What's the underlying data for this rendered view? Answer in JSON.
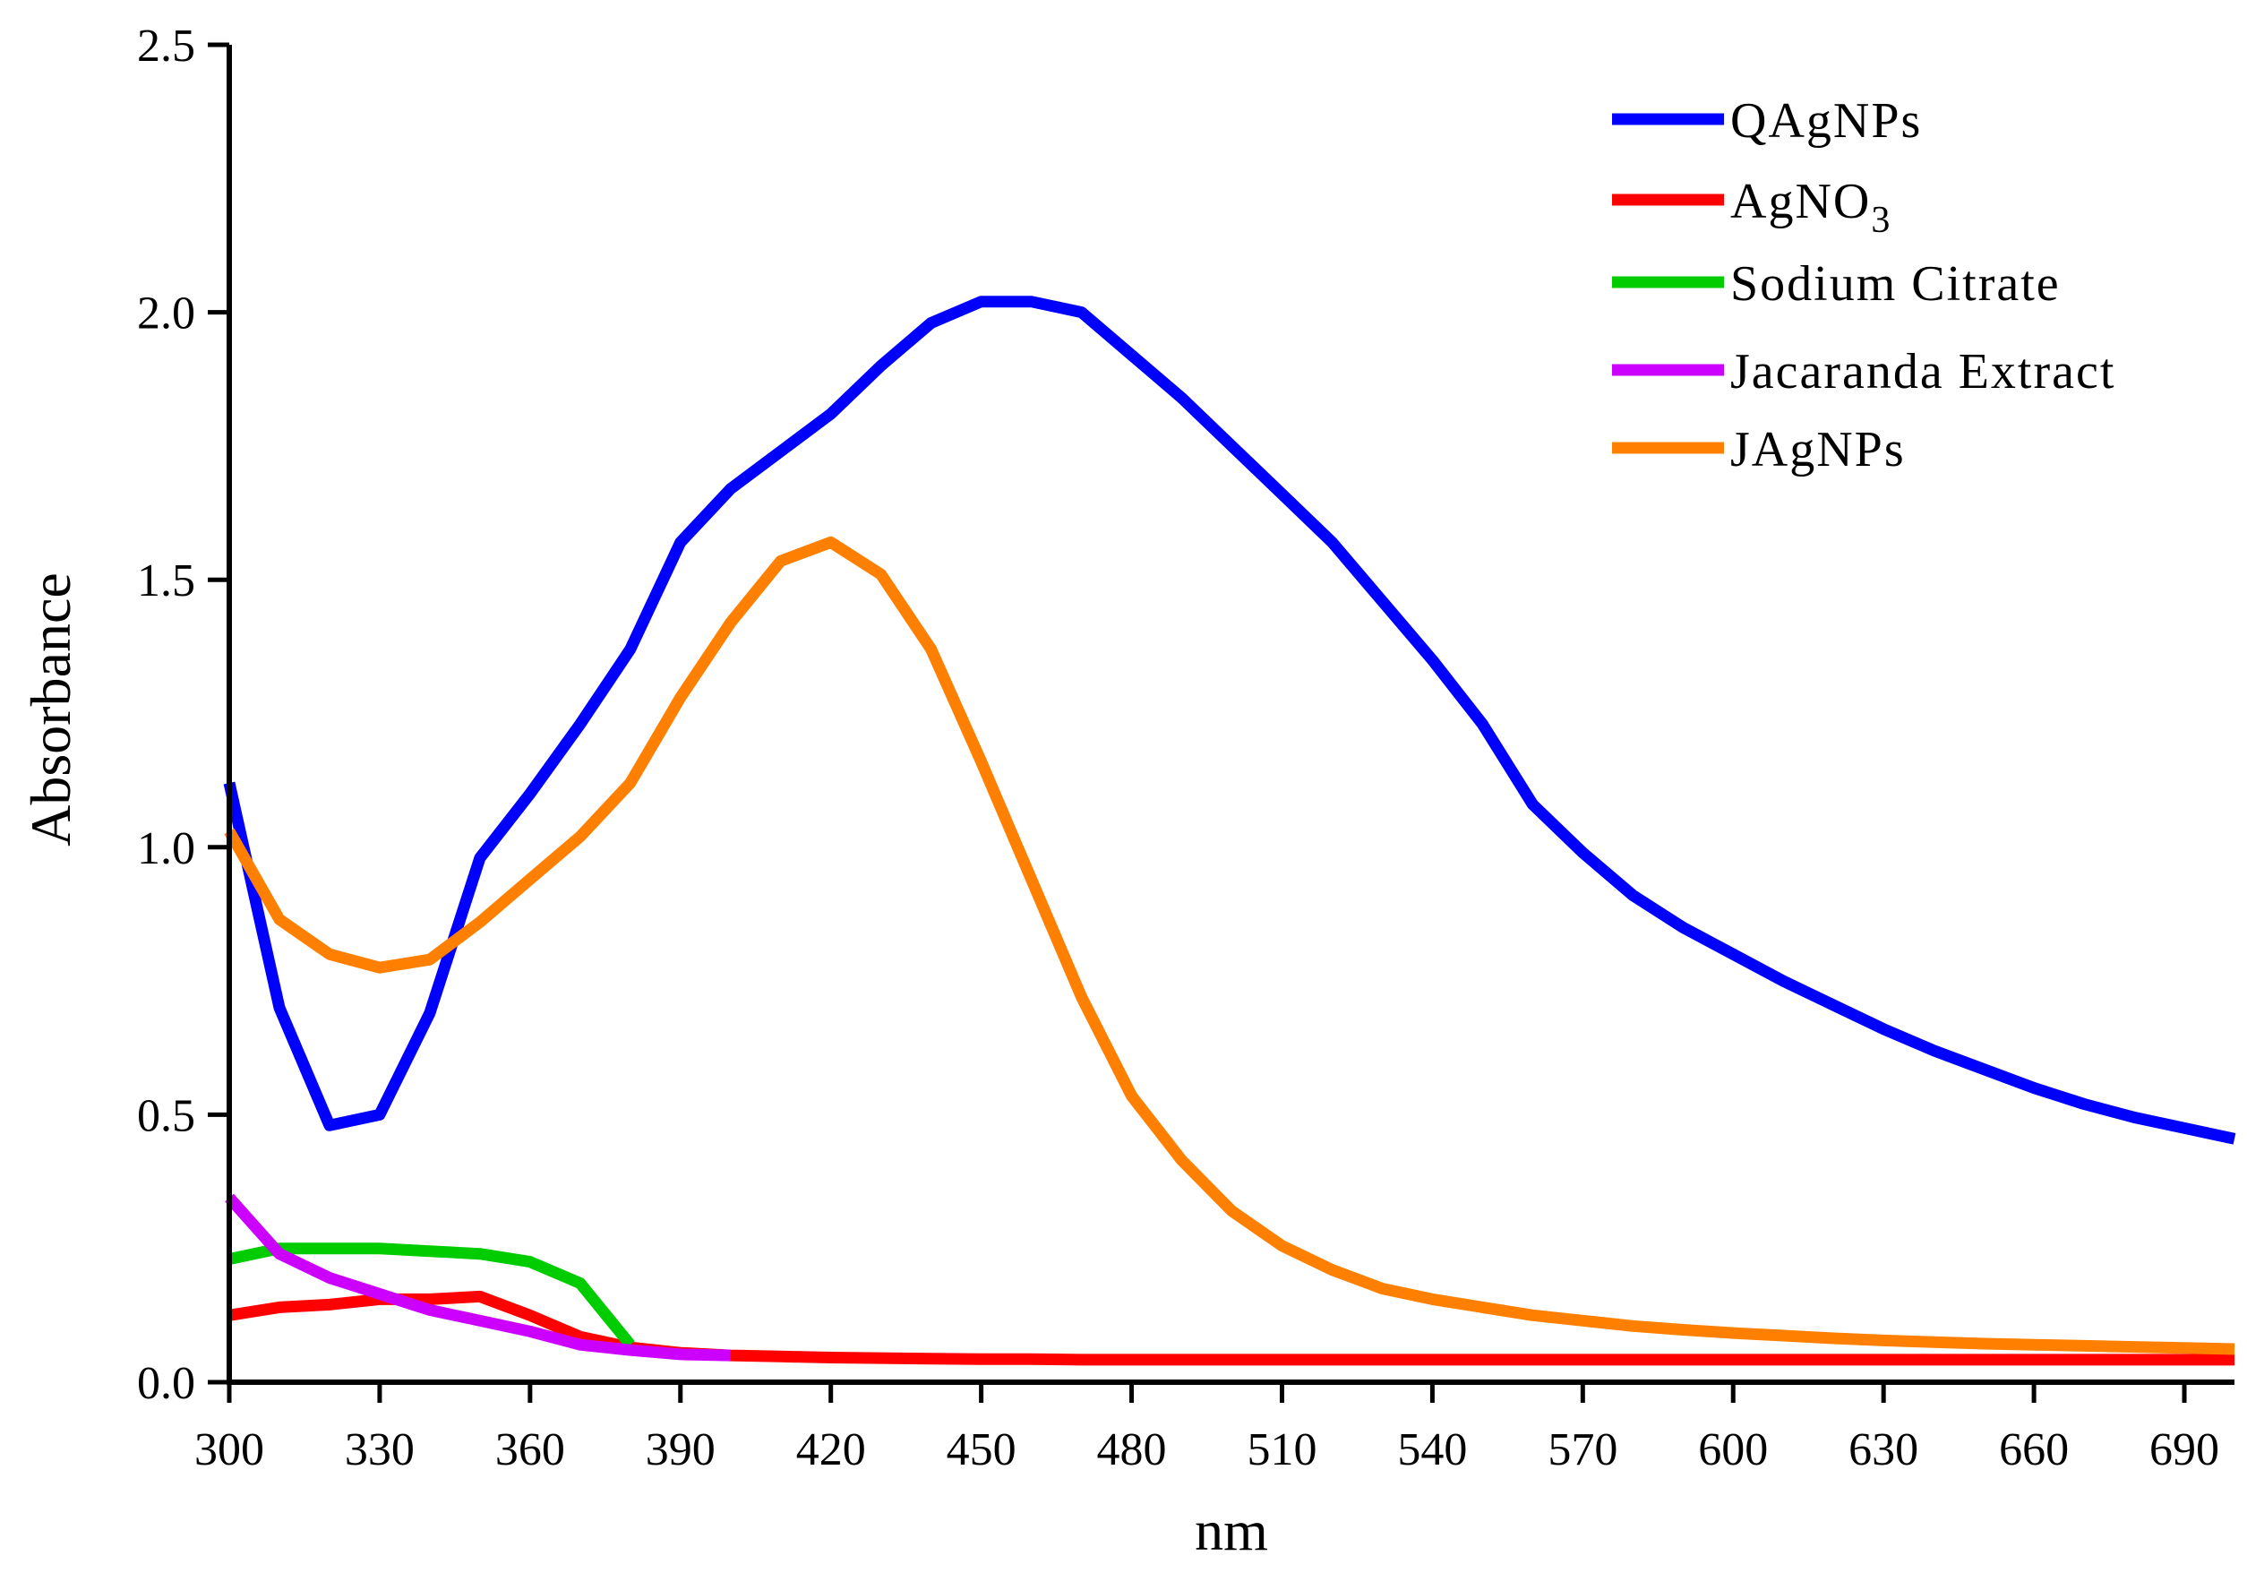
{
  "chart_data": {
    "type": "line",
    "title": "",
    "xlabel": "nm",
    "ylabel": "Absorbance",
    "xlim": [
      300,
      700
    ],
    "ylim": [
      0,
      2.5
    ],
    "x_ticks": [
      "300",
      "330",
      "360",
      "390",
      "420",
      "450",
      "480",
      "510",
      "540",
      "570",
      "600",
      "630",
      "660",
      "690"
    ],
    "y_ticks": [
      "0.0",
      "0.5",
      "1.0",
      "1.5",
      "2.0",
      "2.5"
    ],
    "grid": false,
    "legend_position": "top-right",
    "series": [
      {
        "name": "QAgNPs",
        "color": "#0000ff",
        "x": [
          300,
          310,
          320,
          330,
          340,
          350,
          360,
          370,
          380,
          390,
          400,
          410,
          420,
          430,
          440,
          450,
          460,
          470,
          480,
          490,
          500,
          510,
          520,
          530,
          540,
          550,
          560,
          570,
          580,
          590,
          600,
          610,
          620,
          630,
          640,
          650,
          660,
          670,
          680,
          690,
          700
        ],
        "values": [
          1.12,
          0.7,
          0.48,
          0.5,
          0.69,
          0.98,
          1.1,
          1.23,
          1.37,
          1.57,
          1.67,
          1.74,
          1.81,
          1.9,
          1.98,
          2.02,
          2.02,
          2.0,
          1.92,
          1.84,
          1.75,
          1.66,
          1.57,
          1.46,
          1.35,
          1.23,
          1.08,
          0.99,
          0.91,
          0.85,
          0.8,
          0.75,
          0.705,
          0.66,
          0.62,
          0.585,
          0.55,
          0.52,
          0.495,
          0.475,
          0.455
        ]
      },
      {
        "name": "AgNO3",
        "color": "#ff0000",
        "x": [
          300,
          310,
          320,
          330,
          340,
          350,
          360,
          370,
          380,
          390,
          400,
          410,
          420,
          430,
          440,
          450,
          460,
          470,
          480,
          490,
          500,
          510,
          520,
          530,
          540,
          550,
          560,
          570,
          580,
          590,
          600,
          610,
          620,
          630,
          640,
          650,
          660,
          670,
          680,
          690,
          700
        ],
        "values": [
          0.125,
          0.14,
          0.145,
          0.155,
          0.155,
          0.16,
          0.125,
          0.085,
          0.065,
          0.055,
          0.05,
          0.048,
          0.046,
          0.045,
          0.044,
          0.043,
          0.043,
          0.042,
          0.042,
          0.042,
          0.042,
          0.042,
          0.042,
          0.042,
          0.042,
          0.042,
          0.042,
          0.042,
          0.042,
          0.042,
          0.042,
          0.042,
          0.042,
          0.042,
          0.042,
          0.042,
          0.042,
          0.042,
          0.042,
          0.042,
          0.042
        ]
      },
      {
        "name": "Sodium Citrate",
        "color": "#00cc00",
        "x": [
          300,
          310,
          320,
          330,
          340,
          350,
          360,
          370,
          380
        ],
        "values": [
          0.23,
          0.25,
          0.25,
          0.25,
          0.245,
          0.24,
          0.225,
          0.185,
          0.07
        ]
      },
      {
        "name": "Jacaranda Extract",
        "color": "#cc00ff",
        "x": [
          300,
          310,
          320,
          330,
          340,
          350,
          360,
          370,
          380,
          390,
          400
        ],
        "values": [
          0.345,
          0.24,
          0.195,
          0.165,
          0.135,
          0.115,
          0.095,
          0.07,
          0.06,
          0.052,
          0.05
        ]
      },
      {
        "name": "JAgNPs",
        "color": "#ff8000",
        "x": [
          300,
          310,
          320,
          330,
          340,
          350,
          360,
          370,
          380,
          390,
          400,
          410,
          420,
          430,
          440,
          450,
          460,
          470,
          480,
          490,
          500,
          510,
          520,
          530,
          540,
          550,
          560,
          570,
          580,
          590,
          600,
          610,
          620,
          630,
          640,
          650,
          660,
          670,
          680,
          690,
          700
        ],
        "values": [
          1.03,
          0.865,
          0.8,
          0.775,
          0.79,
          0.86,
          0.94,
          1.02,
          1.12,
          1.28,
          1.42,
          1.535,
          1.57,
          1.51,
          1.37,
          1.16,
          0.94,
          0.72,
          0.535,
          0.415,
          0.32,
          0.255,
          0.21,
          0.175,
          0.155,
          0.14,
          0.125,
          0.115,
          0.105,
          0.098,
          0.092,
          0.087,
          0.082,
          0.078,
          0.075,
          0.072,
          0.07,
          0.068,
          0.066,
          0.064,
          0.062
        ]
      }
    ]
  }
}
